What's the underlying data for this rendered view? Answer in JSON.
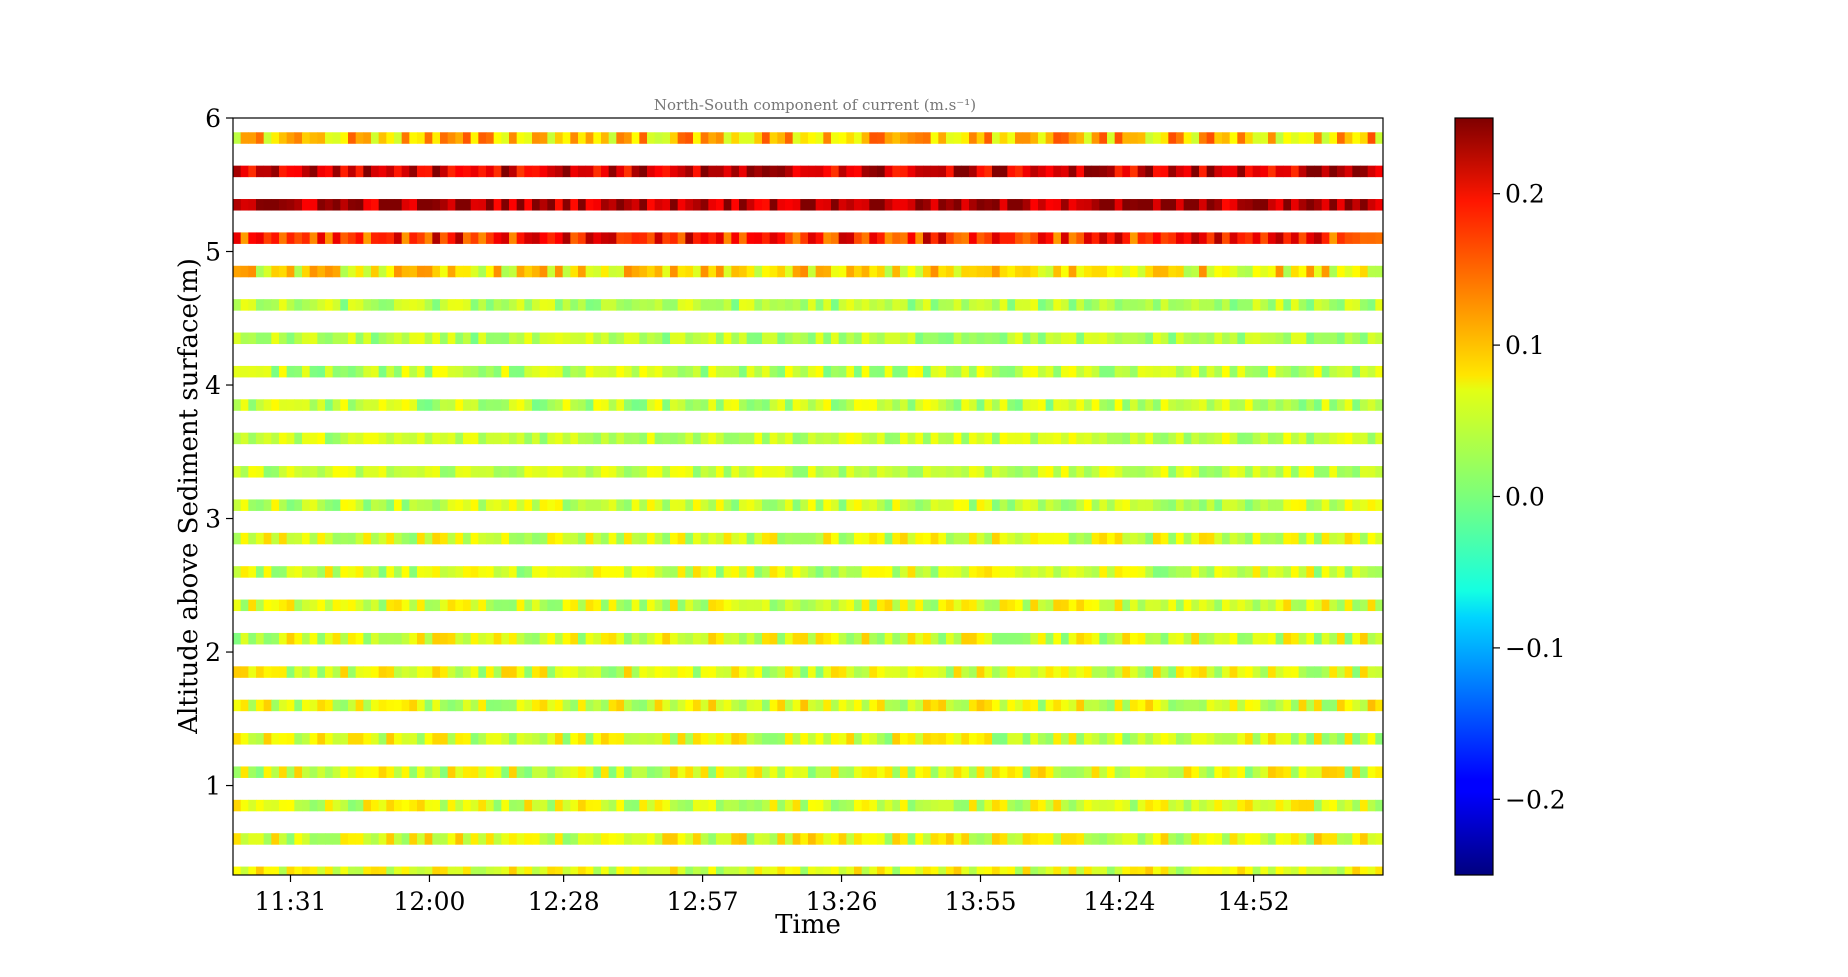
{
  "chart_data": {
    "type": "heatmap",
    "title": "North-South component of current (m.s⁻¹)",
    "xlabel": "Time",
    "ylabel": "Altitude above Sediment surface(m)",
    "x_tick_labels": [
      "11:31",
      "12:00",
      "12:28",
      "12:57",
      "13:26",
      "13:55",
      "14:24",
      "14:52"
    ],
    "x_tick_minutes": [
      691,
      720,
      748,
      777,
      806,
      835,
      864,
      892
    ],
    "x_range_minutes": [
      679,
      919
    ],
    "y_ticks": [
      1,
      2,
      3,
      4,
      5,
      6
    ],
    "y_tick_labels": [
      "1",
      "2",
      "3",
      "4",
      "5",
      "6"
    ],
    "ylim": [
      0.33,
      6.0
    ],
    "altitudes_m": [
      0.35,
      0.6,
      0.85,
      1.1,
      1.35,
      1.6,
      1.85,
      2.1,
      2.35,
      2.6,
      2.85,
      3.1,
      3.35,
      3.6,
      3.85,
      4.1,
      4.35,
      4.6,
      4.85,
      5.1,
      5.35,
      5.6,
      5.85
    ],
    "row_mean_velocity_ms": [
      0.05,
      0.05,
      0.045,
      0.045,
      0.045,
      0.05,
      0.045,
      0.045,
      0.045,
      0.04,
      0.045,
      0.035,
      0.035,
      0.035,
      0.03,
      0.03,
      0.025,
      0.025,
      0.07,
      0.17,
      0.23,
      0.21,
      0.09
    ],
    "row_spread_ms": [
      0.04,
      0.045,
      0.04,
      0.045,
      0.045,
      0.045,
      0.045,
      0.045,
      0.04,
      0.04,
      0.04,
      0.035,
      0.03,
      0.03,
      0.035,
      0.035,
      0.03,
      0.03,
      0.05,
      0.06,
      0.05,
      0.05,
      0.06
    ],
    "colorbar": {
      "colormap": "jet",
      "vmin": -0.25,
      "vmax": 0.25,
      "ticks": [
        -0.2,
        -0.1,
        0.0,
        0.1,
        0.2
      ],
      "tick_labels": [
        "−0.2",
        "−0.1",
        "0.0",
        "0.1",
        "0.2"
      ]
    },
    "grid": false
  }
}
